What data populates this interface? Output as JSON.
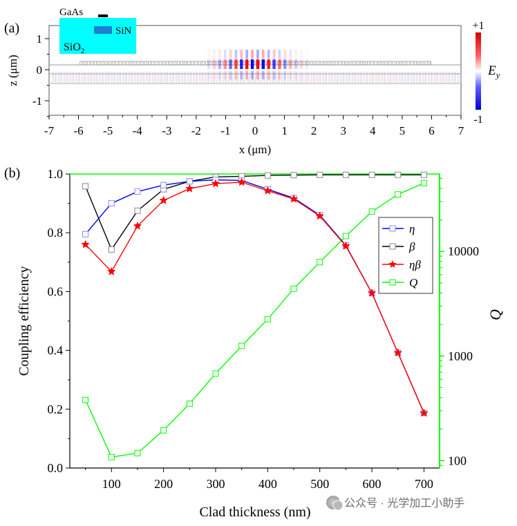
{
  "panel_a": {
    "label": "(a)",
    "inset_labels": {
      "gaas": "GaAs",
      "sin": "SiN",
      "sio2": "SiO",
      "sio2_sub": "2"
    },
    "colorbar": {
      "max_label": "+1",
      "min_label": "-1",
      "field_main": "E",
      "field_sub": "y"
    },
    "colors": {
      "inset": "#00ffff",
      "sin": "#1f7fd1",
      "gaas": "#000000"
    },
    "x_axis": {
      "label": "x (μm)",
      "ticks": [
        "-7",
        "-6",
        "-5",
        "-4",
        "-3",
        "-2",
        "-1",
        "0",
        "1",
        "2",
        "3",
        "4",
        "5",
        "6",
        "7"
      ]
    },
    "y_axis": {
      "label": "z (μm)",
      "ticks": [
        "1",
        "0",
        "-1"
      ]
    }
  },
  "chart_data": {
    "type": "line",
    "title": "",
    "panel_label": "(b)",
    "xlabel": "Clad thickness (nm)",
    "ylabel": "Coupling efficiency",
    "y2label": "Q",
    "xlim": [
      20,
      730
    ],
    "ylim": [
      0,
      1.0
    ],
    "y2_scale": "log",
    "y2lim": [
      85,
      55000
    ],
    "x_ticks": [
      "100",
      "200",
      "300",
      "400",
      "500",
      "600",
      "700"
    ],
    "y_ticks": [
      "0.0",
      "0.2",
      "0.4",
      "0.6",
      "0.8",
      "1.0"
    ],
    "y2_ticks": [
      "100",
      "1000",
      "10000"
    ],
    "legend_position": "top-right",
    "colors": {
      "eta": "#0000ff",
      "beta": "#000000",
      "etabeta": "#ff0000",
      "q": "#00ff00"
    },
    "x": [
      50,
      100,
      150,
      200,
      250,
      300,
      350,
      400,
      450,
      500,
      550,
      600,
      650,
      700
    ],
    "series": [
      {
        "name": "η",
        "axis": "left",
        "marker": "square",
        "values": [
          0.795,
          0.9,
          0.94,
          0.962,
          0.975,
          0.98,
          0.978,
          0.948,
          0.918,
          0.86,
          0.757,
          0.595,
          0.392,
          0.187
        ]
      },
      {
        "name": "β",
        "axis": "left",
        "marker": "square",
        "values": [
          0.958,
          0.743,
          0.875,
          0.948,
          0.975,
          0.99,
          0.992,
          0.995,
          0.996,
          0.997,
          0.997,
          0.997,
          0.997,
          0.997
        ]
      },
      {
        "name": "ηβ",
        "axis": "left",
        "marker": "star",
        "values": [
          0.76,
          0.668,
          0.823,
          0.91,
          0.95,
          0.967,
          0.972,
          0.943,
          0.915,
          0.857,
          0.755,
          0.595,
          0.392,
          0.187
        ]
      },
      {
        "name": "Q",
        "axis": "right",
        "marker": "square",
        "values": [
          380,
          108,
          118,
          195,
          350,
          680,
          1250,
          2250,
          4400,
          7900,
          14000,
          24000,
          35000,
          45000
        ]
      }
    ]
  },
  "watermark": {
    "text": "公众号 · 光学加工小助手"
  }
}
